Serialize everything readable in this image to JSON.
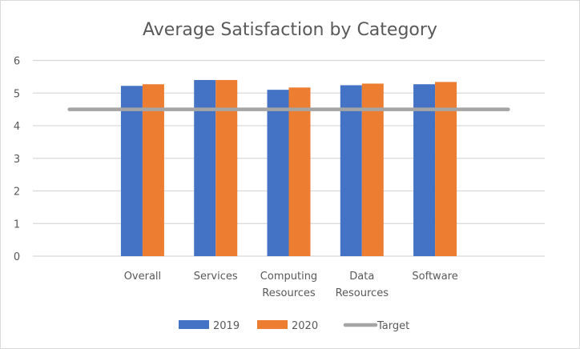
{
  "chart_data": {
    "type": "bar",
    "title": "Average Satisfaction by Category",
    "xlabel": "",
    "ylabel": "",
    "ylim": [
      0,
      6
    ],
    "yticks": [
      0,
      1,
      2,
      3,
      4,
      5,
      6
    ],
    "grid": true,
    "slots": [
      "",
      "Overall",
      "Services",
      "Computing Resources",
      "Data Resources",
      "Software",
      ""
    ],
    "categories": [
      {
        "lines": [
          "Overall"
        ]
      },
      {
        "lines": [
          "Services"
        ]
      },
      {
        "lines": [
          "Computing",
          "Resources"
        ]
      },
      {
        "lines": [
          "Data",
          "Resources"
        ]
      },
      {
        "lines": [
          "Software"
        ]
      }
    ],
    "series": [
      {
        "name": "2019",
        "type": "bar",
        "color": "#4472C4",
        "values": [
          5.22,
          5.4,
          5.1,
          5.24,
          5.27
        ]
      },
      {
        "name": "2020",
        "type": "bar",
        "color": "#ED7D31",
        "values": [
          5.27,
          5.4,
          5.17,
          5.29,
          5.34
        ]
      },
      {
        "name": "Target",
        "type": "line",
        "color": "#A5A5A5",
        "value": 4.5
      }
    ],
    "legend": {
      "position": "bottom",
      "entries": [
        "2019",
        "2020",
        "Target"
      ]
    }
  }
}
